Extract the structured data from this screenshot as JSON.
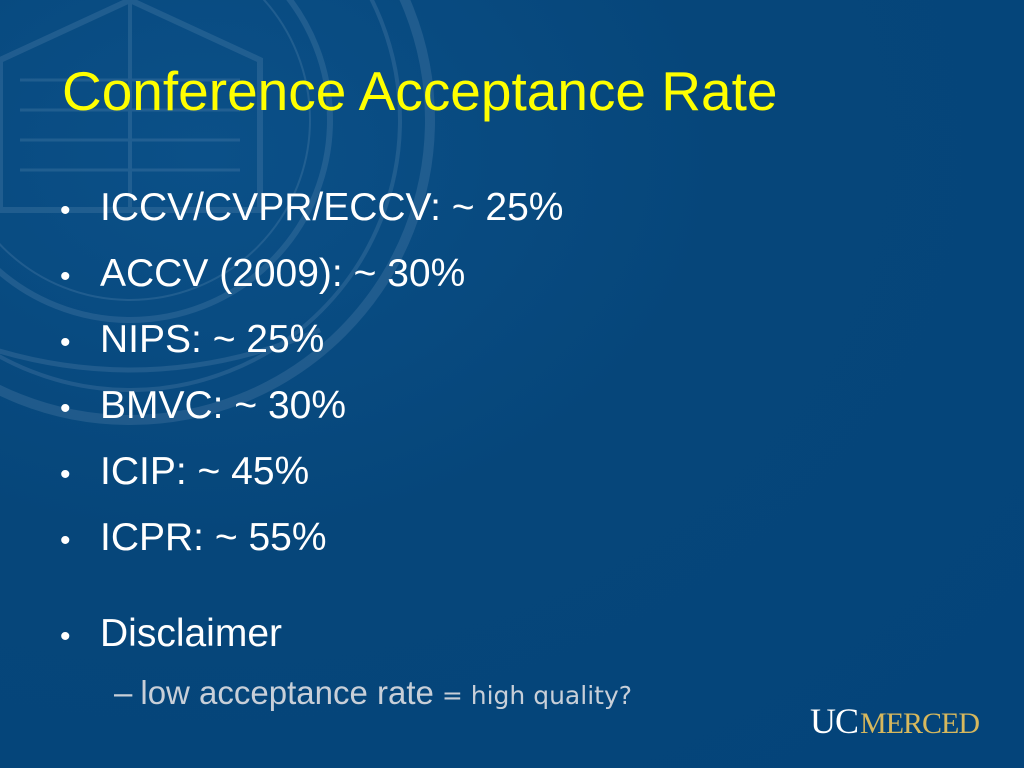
{
  "slide": {
    "title": "Conference Acceptance Rate",
    "bullets": [
      {
        "text": "ICCV/CVPR/ECCV: ~ 25%"
      },
      {
        "text": "ACCV (2009): ~ 30%"
      },
      {
        "text": "NIPS: ~ 25%"
      },
      {
        "text": "BMVC: ~ 30%"
      },
      {
        "text": "ICIP: ~ 45%"
      },
      {
        "text": "ICPR: ~ 55%"
      }
    ],
    "disclaimer": {
      "label": "Disclaimer",
      "sub_dash": "–",
      "sub_main": "low acceptance rate",
      "sub_rest": "= high quality?"
    },
    "bullet_symbol": "•",
    "logo": {
      "uc": "UC",
      "merced": "MERCED"
    }
  },
  "colors": {
    "background": "#05477a",
    "title": "#ffff00",
    "body_text": "#ffffff",
    "sub_text": "#c8cfd8",
    "logo_accent": "#d7b85d"
  },
  "icons": {
    "background_seal": "university-seal-watermark"
  }
}
